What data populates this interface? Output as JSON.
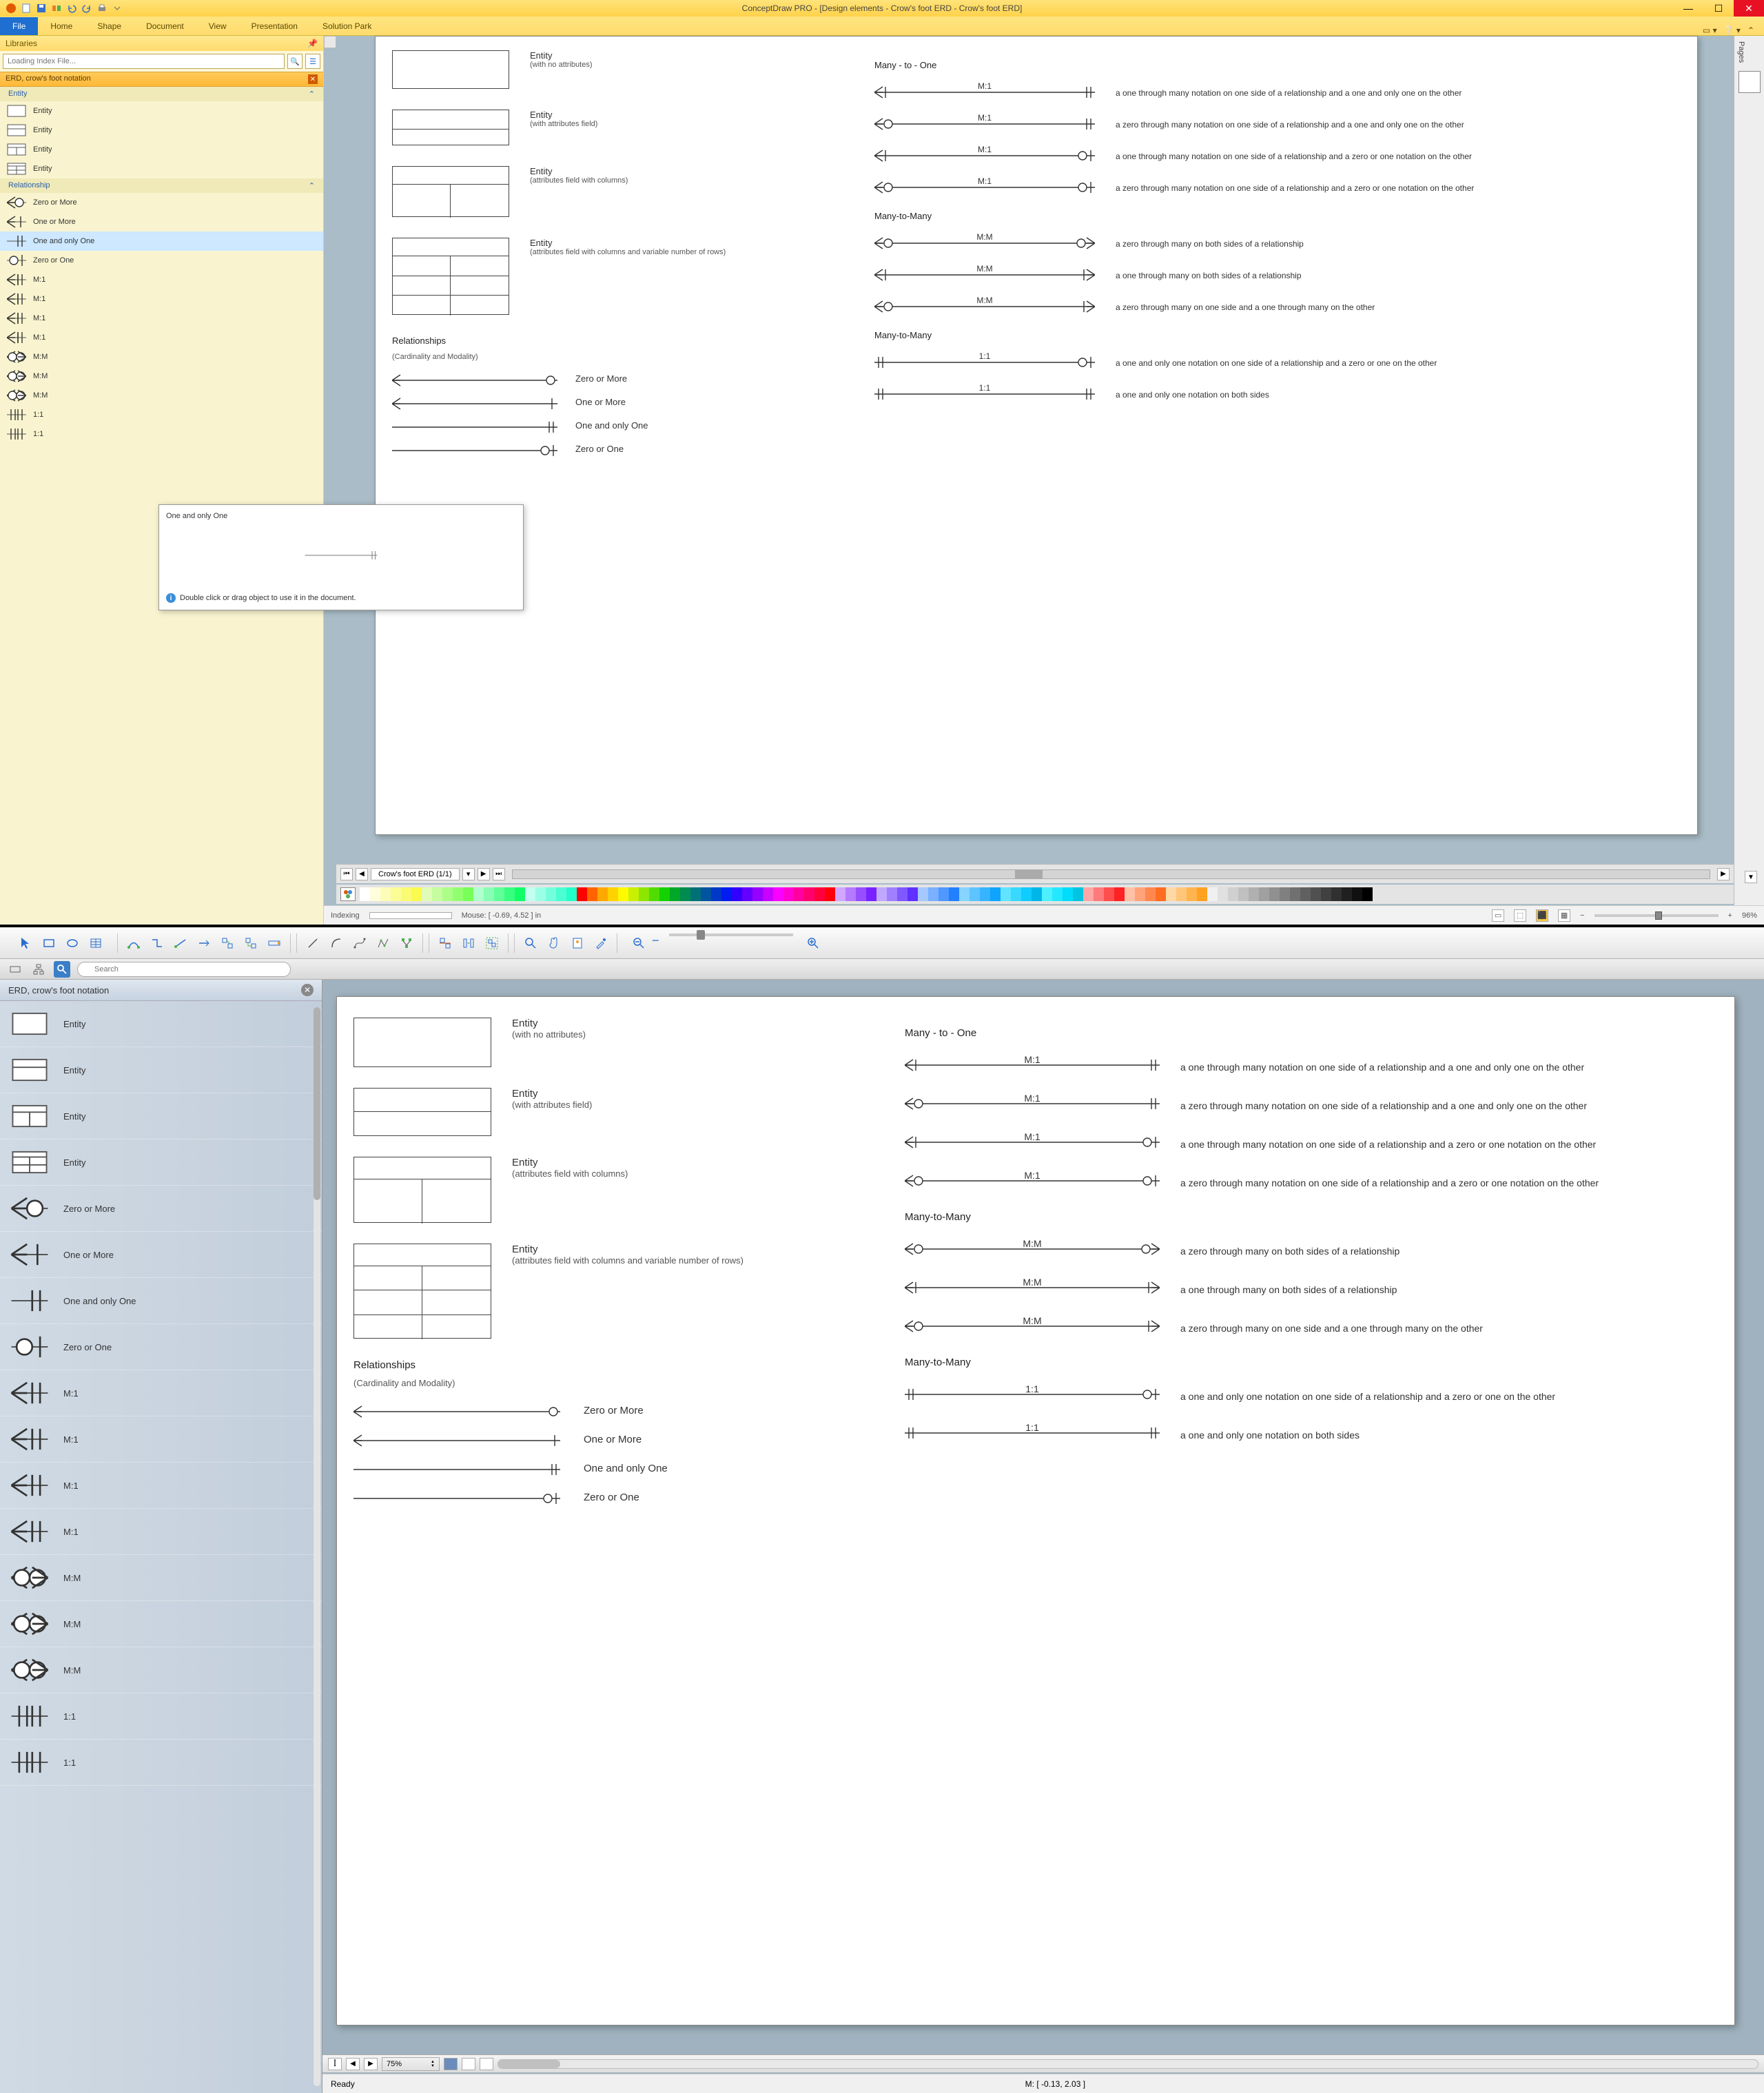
{
  "win": {
    "title": "ConceptDraw PRO - [Design elements - Crow's foot ERD - Crow's foot ERD]",
    "file_label": "File",
    "tabs": [
      "Home",
      "Shape",
      "Document",
      "View",
      "Presentation",
      "Solution Park"
    ],
    "libraries_title": "Libraries",
    "search_placeholder": "Loading Index File...",
    "section_title": "ERD, crow's foot notation",
    "group_entity": "Entity",
    "group_relationship": "Relationship",
    "entity_items": [
      "Entity",
      "Entity",
      "Entity",
      "Entity"
    ],
    "rel_items": [
      "Zero or More",
      "One or More",
      "One and only One",
      "Zero or One",
      "M:1",
      "M:1",
      "M:1",
      "M:1",
      "M:M",
      "M:M",
      "M:M",
      "1:1",
      "1:1"
    ],
    "tooltip_title": "One and only One",
    "tooltip_hint": "Double click or drag object to use it in the document.",
    "tab_chip": "Crow's foot ERD (1/1)",
    "status_left": "Indexing",
    "status_mouse": "Mouse: [ -0.69, 4.52 ] in",
    "zoom": "96%",
    "pages_label": "Pages"
  },
  "mac": {
    "search_placeholder": "Search",
    "lib_title": "ERD, crow's foot notation",
    "items": [
      "Entity",
      "Entity",
      "Entity",
      "Entity",
      "Zero or More",
      "One or More",
      "One and only One",
      "Zero or One",
      "M:1",
      "M:1",
      "M:1",
      "M:1",
      "M:M",
      "M:M",
      "M:M",
      "1:1",
      "1:1"
    ],
    "zoom": "75%",
    "status_ready": "Ready",
    "status_mouse": "M: [ -0.13, 2.03 ]"
  },
  "doc": {
    "many_to_one_title": "Many - to - One",
    "many_to_many_title": "Many-to-Many",
    "many_to_many2_title": "Many-to-Many",
    "entities": [
      {
        "title": "Entity",
        "sub": "(with no attributes)",
        "shape": "h1"
      },
      {
        "title": "Entity",
        "sub": "(with attributes field)",
        "shape": "h2"
      },
      {
        "title": "Entity",
        "sub": "(attributes field with columns)",
        "shape": "h3"
      },
      {
        "title": "Entity",
        "sub": "(attributes field with columns and variable number of rows)",
        "shape": "h4"
      }
    ],
    "rel_heading": "Relationships",
    "rel_sub": "(Cardinality and Modality)",
    "rels": [
      {
        "label": "Zero or More",
        "left": "crow",
        "right": "circle"
      },
      {
        "label": "One or More",
        "left": "crow",
        "right": "tick"
      },
      {
        "label": "One and only One",
        "left": "",
        "right": "double-tick"
      },
      {
        "label": "Zero or One",
        "left": "",
        "right": "tick-circle"
      }
    ],
    "m1": [
      {
        "cap": "M:1",
        "left": "crow-tick",
        "right": "double-tick",
        "desc": "a one through many notation on one side of a relationship and a one and only one on the other"
      },
      {
        "cap": "M:1",
        "left": "crow-circle",
        "right": "double-tick",
        "desc": "a zero through many notation on one side of a relationship and a one and only one on the other"
      },
      {
        "cap": "M:1",
        "left": "crow-tick",
        "right": "tick-circle",
        "desc": "a one through many notation on one side of a relationship and a zero or one notation on the other"
      },
      {
        "cap": "M:1",
        "left": "crow-circle",
        "right": "tick-circle",
        "desc": "a zero through many notation on one side of a relationship and a zero or one notation on the other"
      }
    ],
    "mm": [
      {
        "cap": "M:M",
        "left": "crow-circle",
        "right": "circle-crow",
        "desc": "a zero through many on both sides of a relationship"
      },
      {
        "cap": "M:M",
        "left": "crow-tick",
        "right": "tick-crow",
        "desc": "a one through many on both sides of a relationship"
      },
      {
        "cap": "M:M",
        "left": "crow-circle",
        "right": "tick-crow",
        "desc": "a zero through many on one side and a one through many on the other"
      }
    ],
    "oo": [
      {
        "cap": "1:1",
        "left": "double-tick",
        "right": "tick-circle",
        "desc": "a one and only one notation on one side of a relationship and a zero or one on the other"
      },
      {
        "cap": "1:1",
        "left": "double-tick",
        "right": "double-tick",
        "desc": "a one and only one notation on both sides"
      }
    ]
  },
  "palette": [
    "#ffffff",
    "#fefedc",
    "#fdfdb9",
    "#fcfc96",
    "#fbfb73",
    "#fafa50",
    "#e0fcb8",
    "#c6fda0",
    "#acfe88",
    "#92ff70",
    "#78ff58",
    "#b0ffce",
    "#88ffb4",
    "#60ff9a",
    "#38ff80",
    "#10ff66",
    "#c3fff0",
    "#9bffe6",
    "#73ffdc",
    "#4bffd2",
    "#23ffc8",
    "#ff0000",
    "#ff6400",
    "#ffa800",
    "#ffd200",
    "#fffa00",
    "#c8f000",
    "#8ce600",
    "#50dc00",
    "#14d200",
    "#00a828",
    "#008c50",
    "#007078",
    "#0054a0",
    "#0038c8",
    "#001cf0",
    "#3200ff",
    "#6400ff",
    "#9600ff",
    "#c800ff",
    "#fa00ff",
    "#ff00d2",
    "#ff00a0",
    "#ff006e",
    "#ff003c",
    "#ff000a",
    "#d2a6ff",
    "#b47aff",
    "#964eff",
    "#7822ff",
    "#c0a8ff",
    "#a080ff",
    "#8058ff",
    "#6030ff",
    "#a6c8ff",
    "#7ab0ff",
    "#4e98ff",
    "#2280ff",
    "#86d4ff",
    "#5ec4ff",
    "#36b4ff",
    "#0ea4ff",
    "#60e4ff",
    "#38d8ff",
    "#10ccff",
    "#00b6e8",
    "#4cf0ff",
    "#24e8ff",
    "#00dcfc",
    "#00c4e0",
    "#ffa6a6",
    "#ff7a7a",
    "#ff4e4e",
    "#ff2222",
    "#ffc0a6",
    "#ffa47a",
    "#ff884e",
    "#ff6c22",
    "#ffd8a6",
    "#ffc67a",
    "#ffb44e",
    "#ffa222",
    "#f0f0f0",
    "#e0e0e0",
    "#d0d0d0",
    "#c0c0c0",
    "#b0b0b0",
    "#a0a0a0",
    "#909090",
    "#808080",
    "#707070",
    "#606060",
    "#505050",
    "#404040",
    "#303030",
    "#202020",
    "#101010",
    "#000000"
  ]
}
